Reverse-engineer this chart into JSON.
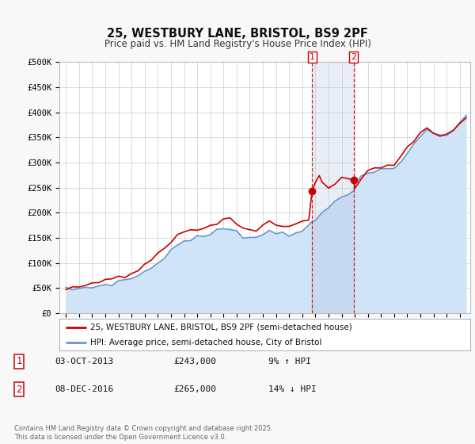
{
  "title": "25, WESTBURY LANE, BRISTOL, BS9 2PF",
  "subtitle": "Price paid vs. HM Land Registry's House Price Index (HPI)",
  "ylim": [
    0,
    500000
  ],
  "yticks": [
    0,
    50000,
    100000,
    150000,
    200000,
    250000,
    300000,
    350000,
    400000,
    450000,
    500000
  ],
  "ytick_labels": [
    "£0",
    "£50K",
    "£100K",
    "£150K",
    "£200K",
    "£250K",
    "£300K",
    "£350K",
    "£400K",
    "£450K",
    "£500K"
  ],
  "legend1": "25, WESTBURY LANE, BRISTOL, BS9 2PF (semi-detached house)",
  "legend2": "HPI: Average price, semi-detached house, City of Bristol",
  "sale1_date": "03-OCT-2013",
  "sale1_price": "£243,000",
  "sale1_hpi": "9% ↑ HPI",
  "sale2_date": "08-DEC-2016",
  "sale2_price": "£265,000",
  "sale2_hpi": "14% ↓ HPI",
  "vline1_x": 2013.75,
  "vline2_x": 2016.92,
  "sale1_dot_y": 243000,
  "sale2_dot_y": 265000,
  "footer": "Contains HM Land Registry data © Crown copyright and database right 2025.\nThis data is licensed under the Open Government Licence v3.0.",
  "background_color": "#f8f8f8",
  "plot_bg_color": "#ffffff",
  "red_color": "#cc0000",
  "blue_color": "#6699cc",
  "blue_fill_color": "#d0e4f7",
  "highlight_fill_color": "#ddeeff",
  "vline_color": "#cc0000",
  "xlim_left": 1994.5,
  "xlim_right": 2025.8
}
